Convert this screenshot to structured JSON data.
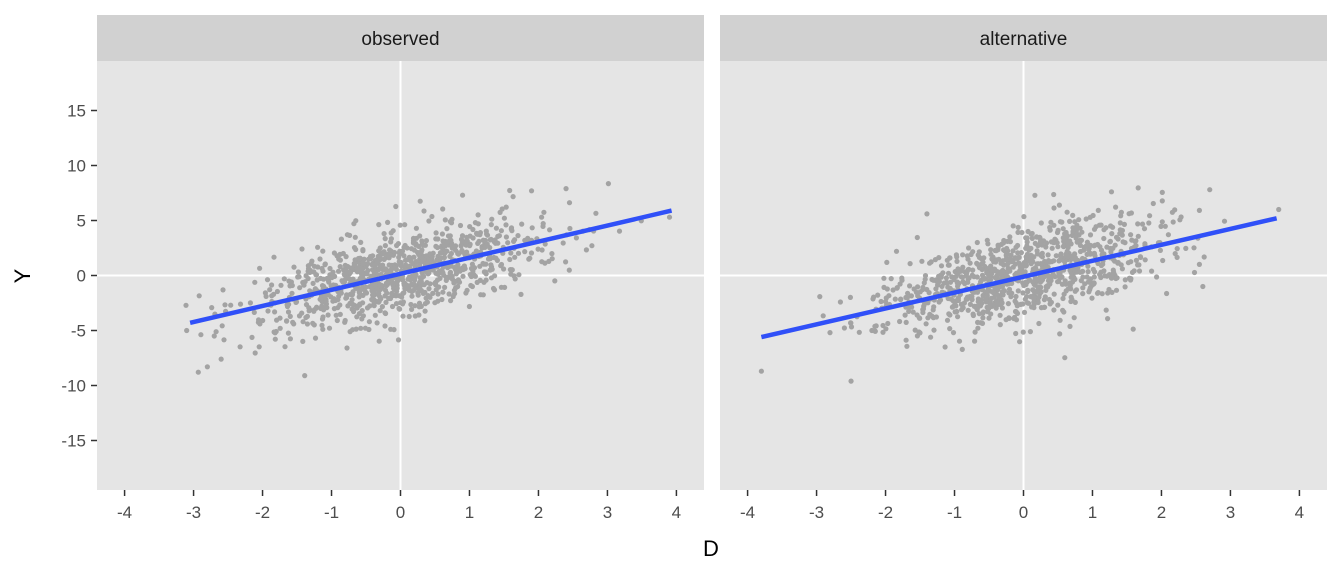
{
  "chart_data": {
    "type": "scatter",
    "facet_layout": "1x2",
    "xlabel": "D",
    "ylabel": "Y",
    "xlim": [
      -4.4,
      4.4
    ],
    "ylim": [
      -19.5,
      19.5
    ],
    "x_ticks": [
      "-4",
      "-3",
      "-2",
      "-1",
      "0",
      "1",
      "2",
      "3",
      "4"
    ],
    "y_ticks": [
      "-15",
      "-10",
      "-5",
      "0",
      "5",
      "10",
      "15"
    ],
    "x_tick_values": [
      -4,
      -3,
      -2,
      -1,
      0,
      1,
      2,
      3,
      4
    ],
    "y_tick_values": [
      -15,
      -10,
      -5,
      0,
      5,
      10,
      15
    ],
    "grid": true,
    "background_color": "#e5e5e5",
    "strip_color": "#d1d1d1",
    "point_color": "#a3a3a3",
    "line_color": "#3050f8",
    "panels": [
      {
        "title": "observed",
        "n_points": 1000,
        "points_summary": {
          "slope": 1.45,
          "intercept": 0.15,
          "x_sd": 1.0,
          "resid_sd": 2.0
        },
        "highlight_points": [
          {
            "x": -3.1,
            "y": -5.0
          },
          {
            "x": -2.8,
            "y": -8.3
          },
          {
            "x": -2.6,
            "y": -7.6
          },
          {
            "x": -2.7,
            "y": -5.5
          },
          {
            "x": 3.9,
            "y": 5.3
          },
          {
            "x": 2.4,
            "y": 7.9
          },
          {
            "x": 1.9,
            "y": 7.7
          },
          {
            "x": 0.9,
            "y": 7.3
          }
        ],
        "fit_line": {
          "x": [
            -3.05,
            3.93
          ],
          "y": [
            -4.3,
            5.9
          ]
        }
      },
      {
        "title": "alternative",
        "n_points": 1000,
        "points_summary": {
          "slope": 1.45,
          "intercept": 0.0,
          "x_sd": 1.0,
          "resid_sd": 2.0
        },
        "highlight_points": [
          {
            "x": -3.8,
            "y": -8.7
          },
          {
            "x": -2.5,
            "y": -9.6
          },
          {
            "x": -1.4,
            "y": 5.6
          },
          {
            "x": 2.7,
            "y": 7.8
          },
          {
            "x": 3.7,
            "y": 6.0
          },
          {
            "x": 2.6,
            "y": -1.0
          }
        ],
        "fit_line": {
          "x": [
            -3.8,
            3.67
          ],
          "y": [
            -5.6,
            5.2
          ]
        }
      }
    ]
  }
}
